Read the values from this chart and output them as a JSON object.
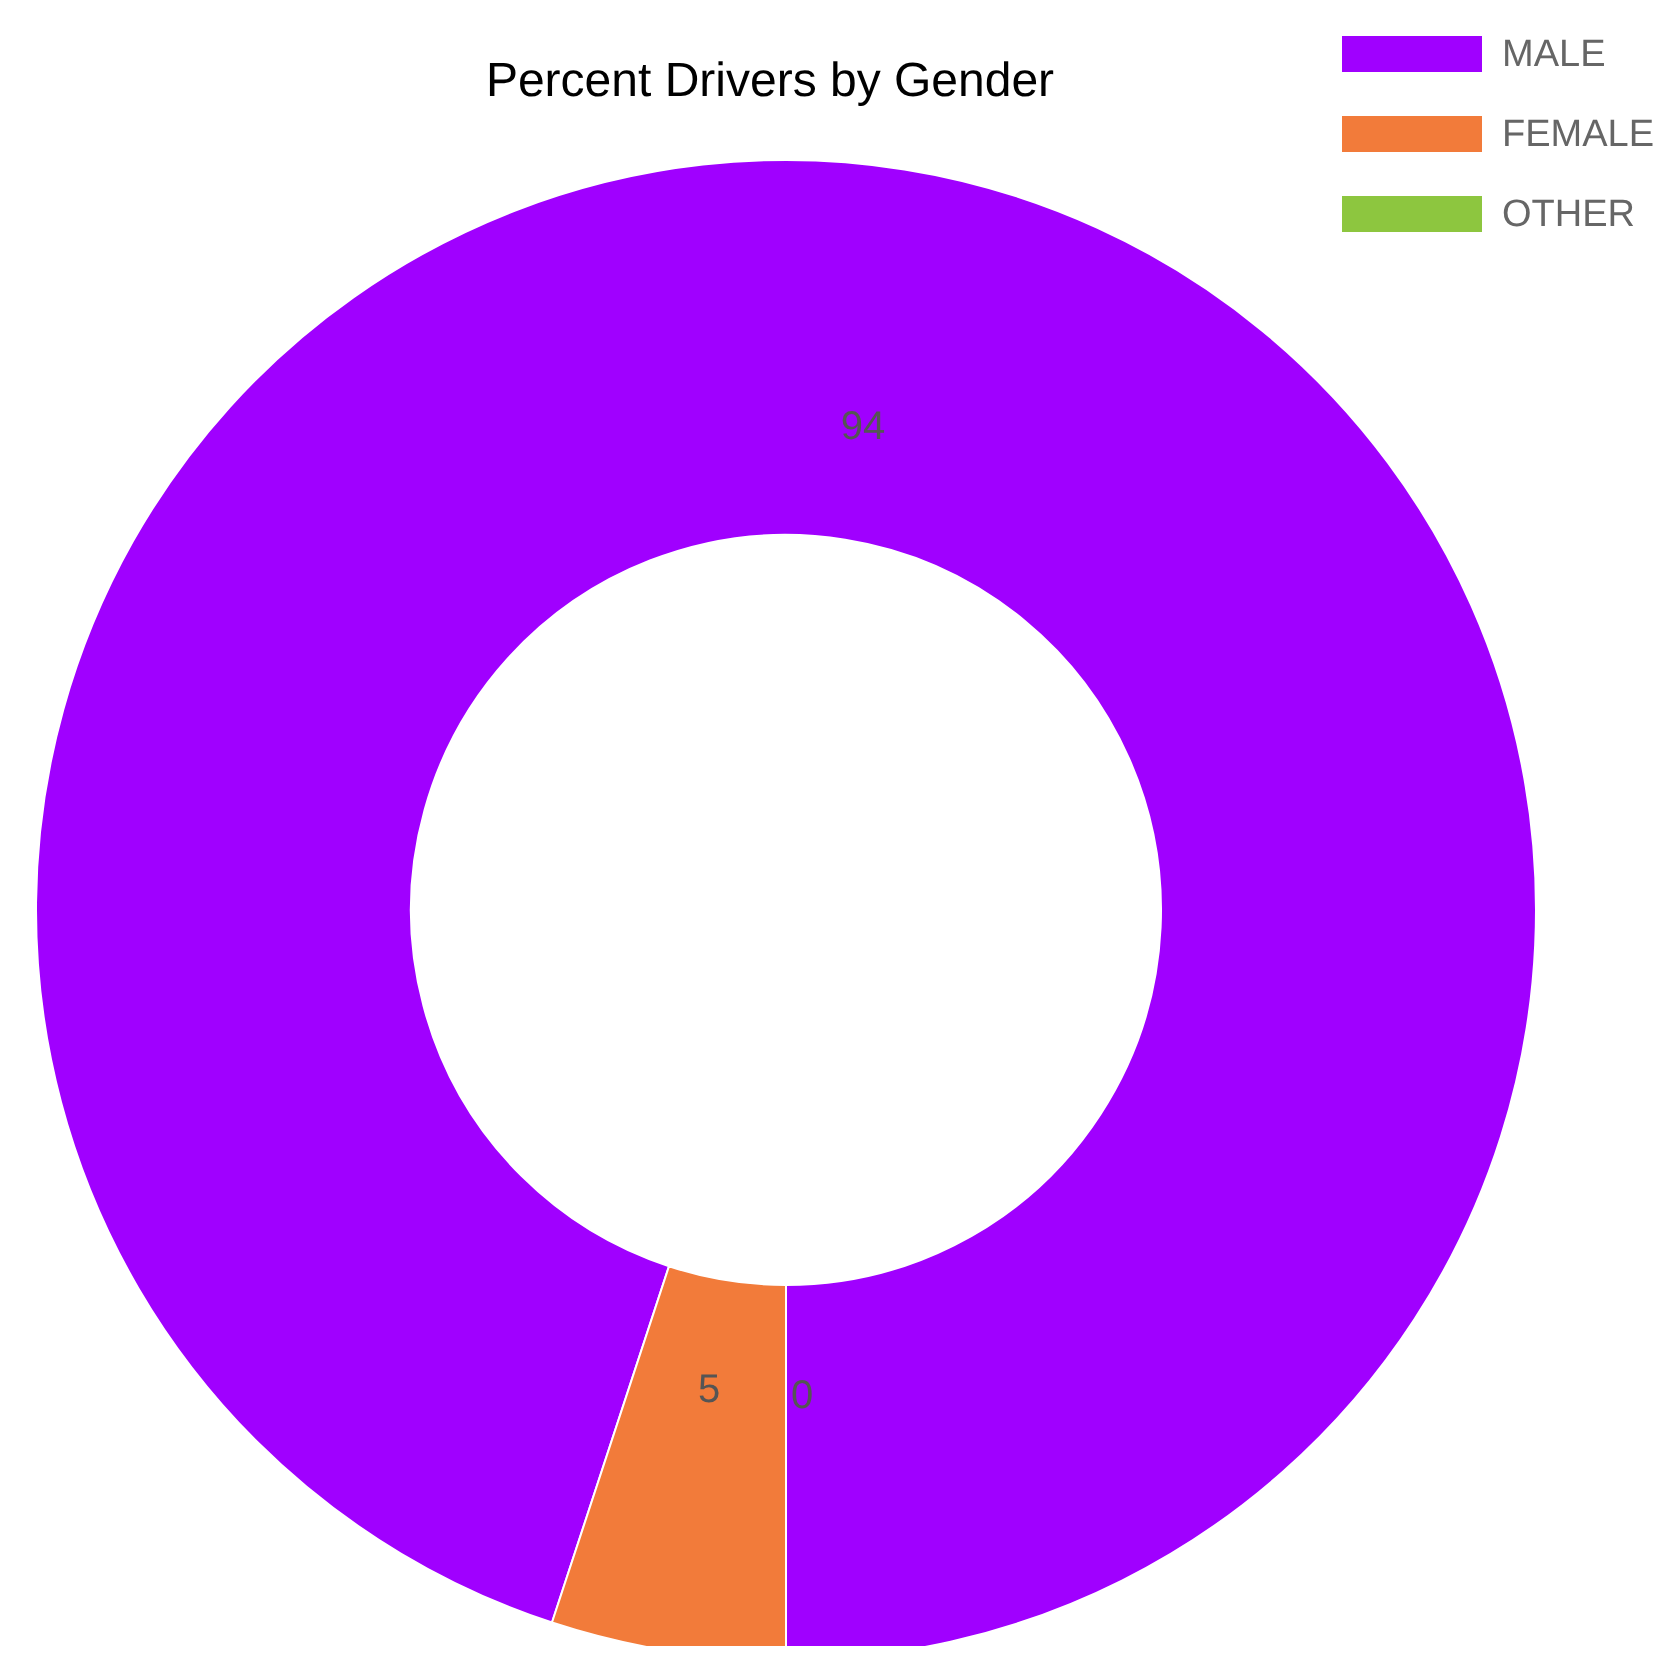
{
  "chart_data": {
    "type": "donut",
    "title": "Percent Drivers by Gender",
    "categories": [
      "MALE",
      "FEMALE",
      "OTHER"
    ],
    "values": [
      94,
      5,
      0
    ],
    "value_labels": [
      "94",
      "5",
      "0"
    ],
    "colors": [
      "#a000ff",
      "#f27b3a",
      "#8dc63f"
    ],
    "legend": "top right"
  }
}
